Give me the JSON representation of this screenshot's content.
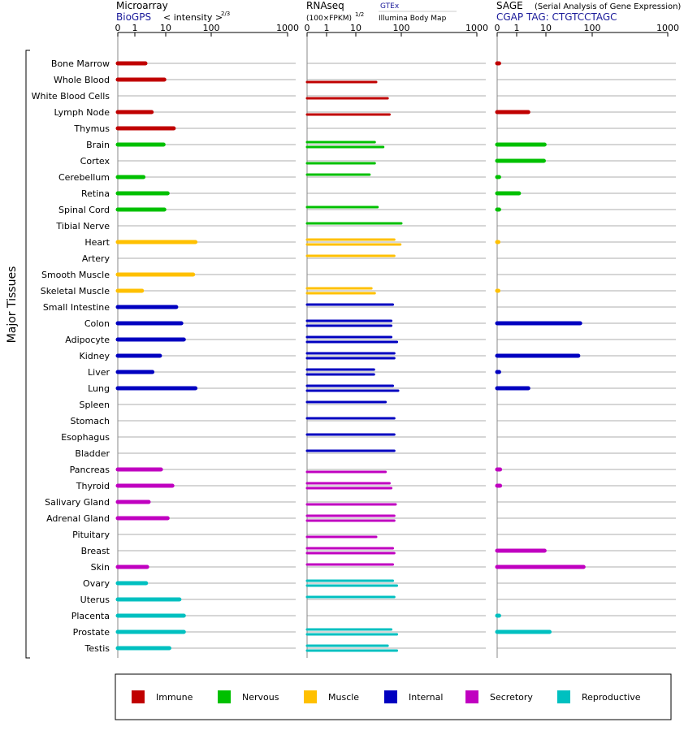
{
  "header": {
    "microarray": "Microarray",
    "biogps": "BioGPS",
    "intensity": "< intensity >",
    "intensity_exp": "2/3",
    "rnaseq": "RNAseq",
    "rnaseq_unit": "(100×FPKM)",
    "rnaseq_exp": "1/2",
    "gtex": "GTEx",
    "illumina": "Illumina Body Map",
    "sage": "SAGE",
    "sage_full": "(Serial Analysis of Gene Expression)",
    "cgap_tag": "CGAP TAG: CTGTCCTAGC",
    "y_group_label": "Major Tissues"
  },
  "chart_data": [
    {
      "type": "bar",
      "title": "Microarray",
      "source": "BioGPS",
      "axis_label": "< intensity >2/3",
      "ticks": [
        "0",
        "1",
        "10",
        "100",
        "1000"
      ],
      "categories": [
        "Bone Marrow",
        "Whole Blood",
        "White Blood Cells",
        "Lymph Node",
        "Thymus",
        "Brain",
        "Cortex",
        "Cerebellum",
        "Retina",
        "Spinal Cord",
        "Tibial Nerve",
        "Heart",
        "Artery",
        "Smooth Muscle",
        "Skeletal Muscle",
        "Small Intestine",
        "Colon",
        "Adipocyte",
        "Kidney",
        "Liver",
        "Lung",
        "Spleen",
        "Stomach",
        "Esophagus",
        "Bladder",
        "Pancreas",
        "Thyroid",
        "Salivary Gland",
        "Adrenal Gland",
        "Pituitary",
        "Breast",
        "Skin",
        "Ovary",
        "Uterus",
        "Placenta",
        "Prostate",
        "Testis"
      ],
      "values": [
        2.2,
        9,
        null,
        3.5,
        15,
        8.5,
        null,
        1.9,
        11,
        9,
        null,
        45,
        null,
        40,
        1.7,
        17,
        22,
        25,
        6.5,
        3.7,
        45,
        null,
        null,
        null,
        null,
        7,
        14,
        2.8,
        11,
        null,
        null,
        2.5,
        2.3,
        20,
        25,
        25,
        12
      ]
    },
    {
      "type": "bar",
      "title": "RNAseq",
      "axis_label": "(100×FPKM)1/2",
      "ticks": [
        "0",
        "1",
        "10",
        "100",
        "1000"
      ],
      "series": [
        {
          "name": "GTEx",
          "values": [
            null,
            null,
            null,
            null,
            null,
            26,
            null,
            20,
            null,
            30,
            100,
            70,
            70,
            null,
            22,
            65,
            60,
            60,
            70,
            25,
            65,
            45,
            70,
            70,
            70,
            null,
            55,
            null,
            70,
            null,
            65,
            65,
            65,
            70,
            null,
            60,
            50
          ]
        },
        {
          "name": "Illumina Body Map",
          "values": [
            null,
            28,
            50,
            55,
            null,
            40,
            26,
            null,
            null,
            null,
            null,
            95,
            null,
            null,
            26,
            null,
            60,
            80,
            70,
            25,
            85,
            null,
            null,
            null,
            null,
            45,
            60,
            75,
            70,
            28,
            70,
            null,
            80,
            null,
            null,
            80,
            80
          ]
        }
      ]
    },
    {
      "type": "bar",
      "title": "SAGE",
      "subtitle": "(Serial Analysis of Gene Expression)",
      "tag": "CGAP TAG: CTGTCCTAGC",
      "ticks": [
        "0",
        "1",
        "10",
        "100",
        "1000"
      ],
      "values": [
        0.1,
        null,
        null,
        2.5,
        null,
        9,
        8.5,
        0.1,
        1.2,
        0.1,
        null,
        0.05,
        null,
        null,
        0.05,
        null,
        55,
        null,
        50,
        0.1,
        2.5,
        null,
        null,
        null,
        null,
        0.15,
        0.15,
        null,
        null,
        null,
        9,
        65,
        null,
        null,
        0.1,
        12,
        null
      ]
    }
  ],
  "legend": [
    {
      "label": "Immune",
      "color": "#c00000"
    },
    {
      "label": "Nervous",
      "color": "#00c000"
    },
    {
      "label": "Muscle",
      "color": "#ffc000"
    },
    {
      "label": "Internal",
      "color": "#0000c0"
    },
    {
      "label": "Secretory",
      "color": "#c000c0"
    },
    {
      "label": "Reproductive",
      "color": "#00c0c0"
    }
  ],
  "group_colors": [
    "#c00000",
    "#c00000",
    "#c00000",
    "#c00000",
    "#c00000",
    "#00c000",
    "#00c000",
    "#00c000",
    "#00c000",
    "#00c000",
    "#00c000",
    "#ffc000",
    "#ffc000",
    "#ffc000",
    "#ffc000",
    "#0000c0",
    "#0000c0",
    "#0000c0",
    "#0000c0",
    "#0000c0",
    "#0000c0",
    "#0000c0",
    "#0000c0",
    "#0000c0",
    "#0000c0",
    "#c000c0",
    "#c000c0",
    "#c000c0",
    "#c000c0",
    "#c000c0",
    "#c000c0",
    "#c000c0",
    "#00c0c0",
    "#00c0c0",
    "#00c0c0",
    "#00c0c0",
    "#00c0c0"
  ]
}
